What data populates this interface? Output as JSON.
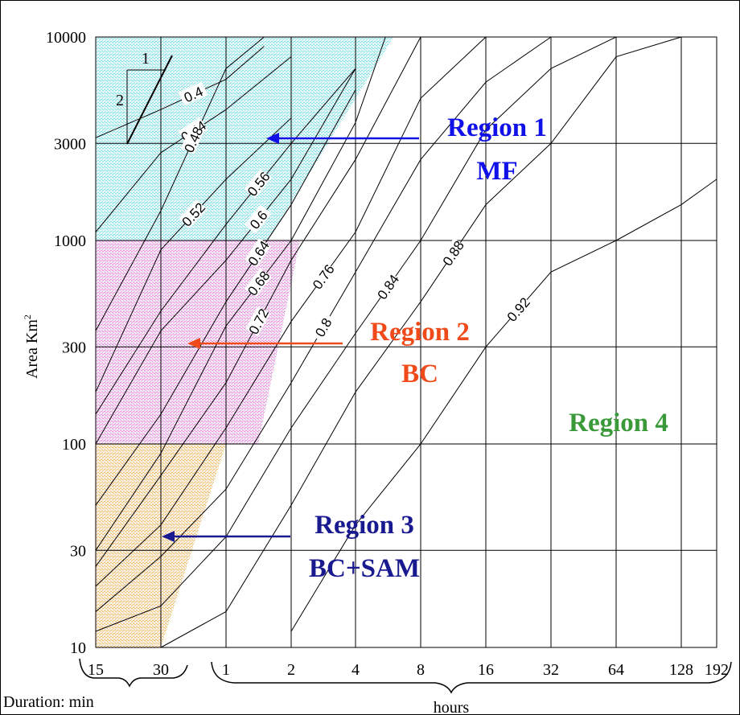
{
  "chart_data": {
    "type": "line",
    "title": "",
    "xlabel": "Duration",
    "ylabel_parts": {
      "text": "Area Km",
      "sup": "2"
    },
    "xaxis_note": {
      "duration": "Duration:",
      "min": "min",
      "hours": "hours"
    },
    "x_tick_labels": [
      "15",
      "30",
      "1",
      "2",
      "4",
      "8",
      "16",
      "32",
      "64",
      "128",
      "192"
    ],
    "x_tick_hours": [
      0.25,
      0.5,
      1,
      2,
      4,
      8,
      16,
      32,
      64,
      128,
      192
    ],
    "y_tick_labels": [
      "10000",
      "3000",
      "1000",
      "300",
      "100",
      "30",
      "10"
    ],
    "y_tick_values": [
      10000,
      3000,
      1000,
      300,
      100,
      30,
      10
    ],
    "y_scale": "log",
    "xlim_hours": [
      0.25,
      192
    ],
    "ylim_km2": [
      10,
      10000
    ],
    "grid": true,
    "slope_triangle": {
      "run": "1",
      "rise": "2"
    },
    "regions": [
      {
        "name": "Region 1",
        "method": "MF",
        "color": "#1010e8",
        "area_km2": [
          1000,
          10000
        ],
        "fill": "#7fdde6"
      },
      {
        "name": "Region 2",
        "method": "BC",
        "color": "#f04a1a",
        "area_km2": [
          100,
          1000
        ],
        "fill": "#e58ae0"
      },
      {
        "name": "Region 3",
        "method": "BC+SAM",
        "color": "#1a1a90",
        "area_km2": [
          10,
          100
        ],
        "fill": "#f0b86a"
      },
      {
        "name": "Region 4",
        "method": "",
        "color": "#3a9a3a",
        "area_km2": [],
        "fill": ""
      }
    ],
    "series": [
      {
        "name": "0.4",
        "points": [
          [
            0.25,
            3200
          ],
          [
            0.5,
            4400
          ],
          [
            1,
            6200
          ],
          [
            1.5,
            9000
          ]
        ]
      },
      {
        "name": "0.44",
        "points": [
          [
            0.25,
            1100
          ],
          [
            0.5,
            2700
          ],
          [
            1,
            4400
          ],
          [
            2,
            8000
          ]
        ]
      },
      {
        "name": "0.48",
        "points": [
          [
            0.25,
            360
          ],
          [
            0.5,
            1400
          ],
          [
            1,
            7000
          ],
          [
            1.5,
            10000
          ]
        ]
      },
      {
        "name": "0.52",
        "points": [
          [
            0.25,
            180
          ],
          [
            0.5,
            900
          ],
          [
            1,
            2000
          ],
          [
            2,
            4000
          ]
        ]
      },
      {
        "name": "0.56",
        "points": [
          [
            0.25,
            140
          ],
          [
            0.5,
            450
          ],
          [
            1,
            1200
          ],
          [
            2,
            3000
          ],
          [
            4,
            7000
          ]
        ]
      },
      {
        "name": "0.6",
        "points": [
          [
            0.25,
            100
          ],
          [
            0.5,
            360
          ],
          [
            1,
            800
          ],
          [
            2,
            2000
          ],
          [
            4,
            7000
          ]
        ]
      },
      {
        "name": "0.64",
        "points": [
          [
            0.25,
            50
          ],
          [
            0.5,
            140
          ],
          [
            1,
            500
          ],
          [
            2,
            1500
          ],
          [
            4,
            5500
          ]
        ]
      },
      {
        "name": "0.68",
        "points": [
          [
            0.25,
            30
          ],
          [
            0.5,
            90
          ],
          [
            1,
            380
          ],
          [
            2,
            1000
          ],
          [
            4,
            3800
          ],
          [
            5.5,
            10000
          ]
        ]
      },
      {
        "name": "0.72",
        "points": [
          [
            0.25,
            25
          ],
          [
            0.5,
            70
          ],
          [
            1,
            200
          ],
          [
            2,
            800
          ],
          [
            4,
            2500
          ],
          [
            8,
            10000
          ]
        ]
      },
      {
        "name": "0.76",
        "points": [
          [
            0.25,
            20
          ],
          [
            0.5,
            40
          ],
          [
            1,
            120
          ],
          [
            2,
            400
          ],
          [
            4,
            1100
          ],
          [
            8,
            5000
          ],
          [
            16,
            10000
          ]
        ]
      },
      {
        "name": "0.8",
        "points": [
          [
            0.25,
            15
          ],
          [
            0.5,
            28
          ],
          [
            1,
            60
          ],
          [
            2,
            200
          ],
          [
            4,
            700
          ],
          [
            8,
            2500
          ],
          [
            16,
            6000
          ],
          [
            32,
            10000
          ]
        ]
      },
      {
        "name": "0.84",
        "points": [
          [
            0.25,
            12
          ],
          [
            0.5,
            16
          ],
          [
            1,
            35
          ],
          [
            2,
            120
          ],
          [
            4,
            350
          ],
          [
            8,
            1000
          ],
          [
            16,
            3500
          ],
          [
            32,
            7000
          ],
          [
            64,
            10000
          ]
        ]
      },
      {
        "name": "0.88",
        "points": [
          [
            0.5,
            10
          ],
          [
            1,
            15
          ],
          [
            2,
            50
          ],
          [
            4,
            180
          ],
          [
            8,
            500
          ],
          [
            16,
            1500
          ],
          [
            32,
            3000
          ],
          [
            64,
            8000
          ],
          [
            128,
            10000
          ]
        ]
      },
      {
        "name": "0.92",
        "points": [
          [
            2,
            12
          ],
          [
            4,
            40
          ],
          [
            8,
            100
          ],
          [
            16,
            300
          ],
          [
            32,
            700
          ],
          [
            64,
            1000
          ],
          [
            128,
            1500
          ],
          [
            192,
            2000
          ]
        ]
      }
    ],
    "region_boundary_hours": [
      {
        "area_km2": 10000,
        "hours": 6
      },
      {
        "area_km2": 1000,
        "hours": 2.2
      },
      {
        "area_km2": 100,
        "hours": 1
      }
    ]
  }
}
